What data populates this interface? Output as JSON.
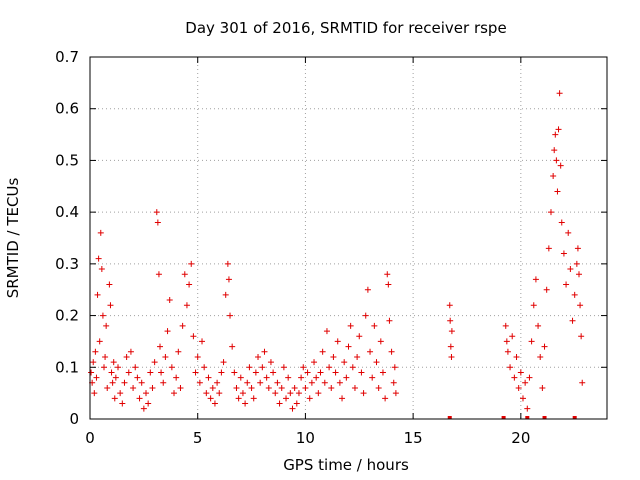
{
  "chart_data": {
    "type": "scatter",
    "title": "Day 301 of 2016, SRMTID for receiver rspe",
    "xlabel": "GPS time / hours",
    "ylabel": "SRMTID / TECUs",
    "xlim": [
      0,
      24
    ],
    "ylim": [
      0,
      0.7
    ],
    "xticks": [
      "0",
      "5",
      "10",
      "15",
      "20"
    ],
    "xtick_values": [
      0,
      5,
      10,
      15,
      20
    ],
    "yticks": [
      "0",
      "0.1",
      "0.2",
      "0.3",
      "0.4",
      "0.5",
      "0.6",
      "0.7"
    ],
    "ytick_values": [
      0,
      0.1,
      0.2,
      0.3,
      0.4,
      0.5,
      0.6,
      0.7
    ],
    "grid": true,
    "marker": "+",
    "color": "#e00000",
    "series": [
      {
        "name": "SRMTID rspe",
        "points": [
          [
            0.05,
            0.09
          ],
          [
            0.1,
            0.07
          ],
          [
            0.15,
            0.11
          ],
          [
            0.2,
            0.05
          ],
          [
            0.25,
            0.13
          ],
          [
            0.3,
            0.08
          ],
          [
            0.35,
            0.24
          ],
          [
            0.4,
            0.31
          ],
          [
            0.45,
            0.15
          ],
          [
            0.5,
            0.36
          ],
          [
            0.55,
            0.29
          ],
          [
            0.6,
            0.2
          ],
          [
            0.65,
            0.1
          ],
          [
            0.7,
            0.12
          ],
          [
            0.75,
            0.18
          ],
          [
            0.8,
            0.06
          ],
          [
            0.9,
            0.26
          ],
          [
            0.95,
            0.22
          ],
          [
            1.0,
            0.09
          ],
          [
            1.05,
            0.07
          ],
          [
            1.1,
            0.11
          ],
          [
            1.15,
            0.04
          ],
          [
            1.2,
            0.08
          ],
          [
            1.3,
            0.1
          ],
          [
            1.4,
            0.05
          ],
          [
            1.5,
            0.03
          ],
          [
            1.6,
            0.07
          ],
          [
            1.7,
            0.12
          ],
          [
            1.8,
            0.09
          ],
          [
            1.9,
            0.13
          ],
          [
            2.0,
            0.06
          ],
          [
            2.1,
            0.1
          ],
          [
            2.2,
            0.08
          ],
          [
            2.3,
            0.04
          ],
          [
            2.4,
            0.07
          ],
          [
            2.5,
            0.02
          ],
          [
            2.6,
            0.05
          ],
          [
            2.7,
            0.03
          ],
          [
            2.8,
            0.09
          ],
          [
            2.9,
            0.06
          ],
          [
            3.0,
            0.11
          ],
          [
            3.1,
            0.4
          ],
          [
            3.15,
            0.38
          ],
          [
            3.2,
            0.28
          ],
          [
            3.25,
            0.14
          ],
          [
            3.3,
            0.09
          ],
          [
            3.4,
            0.07
          ],
          [
            3.5,
            0.12
          ],
          [
            3.6,
            0.17
          ],
          [
            3.7,
            0.23
          ],
          [
            3.8,
            0.1
          ],
          [
            3.9,
            0.05
          ],
          [
            4.0,
            0.08
          ],
          [
            4.1,
            0.13
          ],
          [
            4.2,
            0.06
          ],
          [
            4.3,
            0.18
          ],
          [
            4.4,
            0.28
          ],
          [
            4.5,
            0.22
          ],
          [
            4.6,
            0.26
          ],
          [
            4.7,
            0.3
          ],
          [
            4.8,
            0.16
          ],
          [
            4.9,
            0.09
          ],
          [
            5.0,
            0.12
          ],
          [
            5.1,
            0.07
          ],
          [
            5.2,
            0.15
          ],
          [
            5.3,
            0.1
          ],
          [
            5.4,
            0.05
          ],
          [
            5.5,
            0.08
          ],
          [
            5.6,
            0.04
          ],
          [
            5.7,
            0.06
          ],
          [
            5.8,
            0.03
          ],
          [
            5.9,
            0.07
          ],
          [
            6.0,
            0.05
          ],
          [
            6.1,
            0.09
          ],
          [
            6.2,
            0.11
          ],
          [
            6.3,
            0.24
          ],
          [
            6.4,
            0.3
          ],
          [
            6.45,
            0.27
          ],
          [
            6.5,
            0.2
          ],
          [
            6.6,
            0.14
          ],
          [
            6.7,
            0.09
          ],
          [
            6.8,
            0.06
          ],
          [
            6.9,
            0.04
          ],
          [
            7.0,
            0.08
          ],
          [
            7.1,
            0.05
          ],
          [
            7.2,
            0.03
          ],
          [
            7.3,
            0.07
          ],
          [
            7.4,
            0.1
          ],
          [
            7.5,
            0.06
          ],
          [
            7.6,
            0.04
          ],
          [
            7.7,
            0.09
          ],
          [
            7.8,
            0.12
          ],
          [
            7.9,
            0.07
          ],
          [
            8.0,
            0.1
          ],
          [
            8.1,
            0.13
          ],
          [
            8.2,
            0.08
          ],
          [
            8.3,
            0.06
          ],
          [
            8.4,
            0.11
          ],
          [
            8.5,
            0.09
          ],
          [
            8.6,
            0.05
          ],
          [
            8.7,
            0.07
          ],
          [
            8.8,
            0.03
          ],
          [
            8.9,
            0.06
          ],
          [
            9.0,
            0.1
          ],
          [
            9.1,
            0.04
          ],
          [
            9.2,
            0.08
          ],
          [
            9.3,
            0.05
          ],
          [
            9.4,
            0.02
          ],
          [
            9.5,
            0.06
          ],
          [
            9.6,
            0.03
          ],
          [
            9.7,
            0.05
          ],
          [
            9.8,
            0.08
          ],
          [
            9.9,
            0.1
          ],
          [
            10.0,
            0.06
          ],
          [
            10.1,
            0.09
          ],
          [
            10.2,
            0.04
          ],
          [
            10.3,
            0.07
          ],
          [
            10.4,
            0.11
          ],
          [
            10.5,
            0.08
          ],
          [
            10.6,
            0.05
          ],
          [
            10.7,
            0.09
          ],
          [
            10.8,
            0.13
          ],
          [
            10.9,
            0.07
          ],
          [
            11.0,
            0.17
          ],
          [
            11.1,
            0.1
          ],
          [
            11.2,
            0.06
          ],
          [
            11.3,
            0.12
          ],
          [
            11.4,
            0.09
          ],
          [
            11.5,
            0.15
          ],
          [
            11.6,
            0.07
          ],
          [
            11.7,
            0.04
          ],
          [
            11.8,
            0.11
          ],
          [
            11.9,
            0.08
          ],
          [
            12.0,
            0.14
          ],
          [
            12.1,
            0.18
          ],
          [
            12.2,
            0.1
          ],
          [
            12.3,
            0.06
          ],
          [
            12.4,
            0.12
          ],
          [
            12.5,
            0.16
          ],
          [
            12.6,
            0.09
          ],
          [
            12.7,
            0.05
          ],
          [
            12.8,
            0.2
          ],
          [
            12.9,
            0.25
          ],
          [
            13.0,
            0.13
          ],
          [
            13.1,
            0.08
          ],
          [
            13.2,
            0.18
          ],
          [
            13.3,
            0.11
          ],
          [
            13.4,
            0.06
          ],
          [
            13.5,
            0.15
          ],
          [
            13.6,
            0.09
          ],
          [
            13.7,
            0.04
          ],
          [
            13.8,
            0.28
          ],
          [
            13.85,
            0.26
          ],
          [
            13.9,
            0.19
          ],
          [
            14.0,
            0.13
          ],
          [
            14.1,
            0.07
          ],
          [
            14.15,
            0.1
          ],
          [
            14.2,
            0.05
          ],
          [
            16.7,
            0.22
          ],
          [
            16.72,
            0.19
          ],
          [
            16.75,
            0.14
          ],
          [
            16.78,
            0.12
          ],
          [
            16.8,
            0.17
          ],
          [
            19.3,
            0.18
          ],
          [
            19.35,
            0.15
          ],
          [
            19.4,
            0.13
          ],
          [
            19.5,
            0.1
          ],
          [
            19.6,
            0.16
          ],
          [
            19.7,
            0.08
          ],
          [
            19.8,
            0.12
          ],
          [
            19.9,
            0.06
          ],
          [
            20.0,
            0.09
          ],
          [
            20.1,
            0.04
          ],
          [
            20.2,
            0.07
          ],
          [
            20.3,
            0.02
          ],
          [
            20.4,
            0.08
          ],
          [
            20.5,
            0.15
          ],
          [
            20.6,
            0.22
          ],
          [
            20.7,
            0.27
          ],
          [
            20.8,
            0.18
          ],
          [
            20.9,
            0.12
          ],
          [
            21.0,
            0.06
          ],
          [
            21.1,
            0.14
          ],
          [
            21.2,
            0.25
          ],
          [
            21.3,
            0.33
          ],
          [
            21.4,
            0.4
          ],
          [
            21.5,
            0.47
          ],
          [
            21.55,
            0.52
          ],
          [
            21.6,
            0.55
          ],
          [
            21.65,
            0.5
          ],
          [
            21.7,
            0.44
          ],
          [
            21.75,
            0.56
          ],
          [
            21.8,
            0.63
          ],
          [
            21.85,
            0.49
          ],
          [
            21.9,
            0.38
          ],
          [
            22.0,
            0.32
          ],
          [
            22.1,
            0.26
          ],
          [
            22.2,
            0.36
          ],
          [
            22.3,
            0.29
          ],
          [
            22.4,
            0.19
          ],
          [
            22.5,
            0.24
          ],
          [
            22.6,
            0.3
          ],
          [
            22.65,
            0.33
          ],
          [
            22.7,
            0.28
          ],
          [
            22.75,
            0.22
          ],
          [
            22.8,
            0.16
          ],
          [
            22.85,
            0.07
          ]
        ],
        "zero_markers": [
          16.7,
          19.2,
          20.3,
          21.1,
          22.5
        ]
      }
    ]
  }
}
